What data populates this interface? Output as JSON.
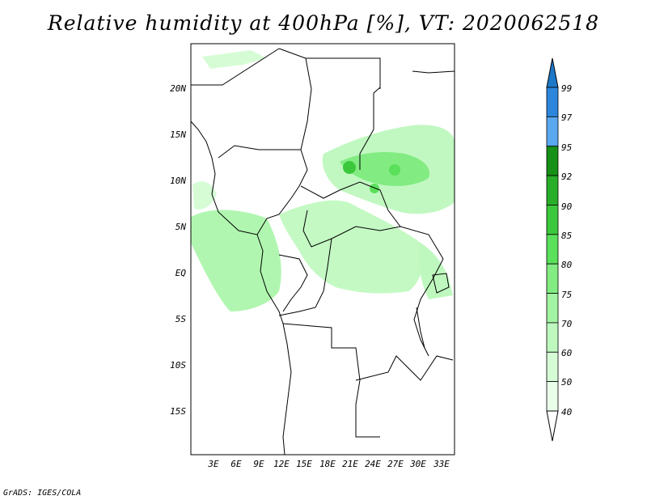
{
  "title": "Relative humidity at 400hPa [%], VT: 2020062518",
  "credit": "GrADS: IGES/COLA",
  "map": {
    "lon_labels": [
      "3E",
      "6E",
      "9E",
      "12E",
      "15E",
      "18E",
      "21E",
      "24E",
      "27E",
      "30E",
      "33E"
    ],
    "lat_labels": [
      "20N",
      "15N",
      "10N",
      "5N",
      "EQ",
      "5S",
      "10S",
      "15S"
    ]
  },
  "legend": {
    "levels": [
      "99",
      "97",
      "95",
      "92",
      "90",
      "85",
      "80",
      "75",
      "70",
      "60",
      "50",
      "40"
    ],
    "colors": [
      "#1e78c8",
      "#2c86dc",
      "#5aa8f0",
      "#169016",
      "#28ae28",
      "#3cc83c",
      "#5ae05a",
      "#82ec82",
      "#a2f4a2",
      "#bef8be",
      "#d6fcd6",
      "#eaffea"
    ]
  }
}
